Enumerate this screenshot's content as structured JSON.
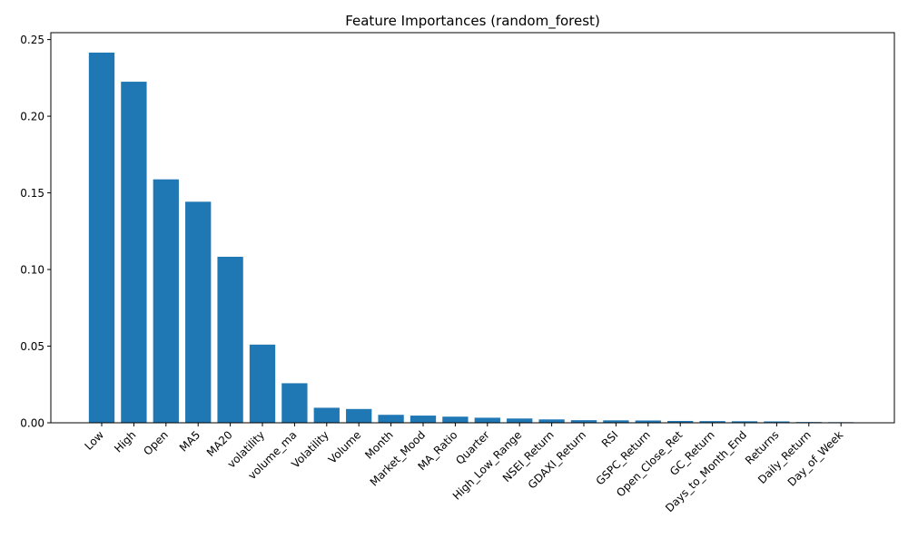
{
  "chart_data": {
    "type": "bar",
    "title": "Feature Importances (random_forest)",
    "xlabel": "",
    "ylabel": "",
    "ylim": [
      0,
      0.2545
    ],
    "yticks": [
      "0.00",
      "0.05",
      "0.10",
      "0.15",
      "0.20",
      "0.25"
    ],
    "ytick_values": [
      0,
      0.05,
      0.1,
      0.15,
      0.2,
      0.25
    ],
    "grid": false,
    "bar_color": "#1f77b4",
    "categories": [
      "Low",
      "High",
      "Open",
      "MA5",
      "MA20",
      "volatility",
      "volume_ma",
      "Volatility",
      "Volume",
      "Month",
      "Market_Mood",
      "MA_Ratio",
      "Quarter",
      "High_Low_Range",
      "NSEI_Return",
      "GDAXI_Return",
      "RSI",
      "GSPC_Return",
      "Open_Close_Ret",
      "GC_Return",
      "Days_to_Month_End",
      "Returns",
      "Daily_Return",
      "Day_of_Week"
    ],
    "values": [
      0.2415,
      0.2225,
      0.1588,
      0.1442,
      0.1083,
      0.051,
      0.0258,
      0.0098,
      0.009,
      0.0052,
      0.0047,
      0.004,
      0.0033,
      0.0028,
      0.0022,
      0.0017,
      0.0016,
      0.0015,
      0.0012,
      0.0011,
      0.001,
      0.0009,
      0.0005,
      0.0004
    ]
  }
}
